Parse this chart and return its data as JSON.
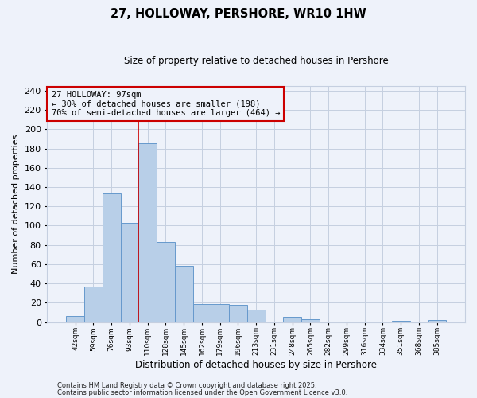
{
  "title": "27, HOLLOWAY, PERSHORE, WR10 1HW",
  "subtitle": "Size of property relative to detached houses in Pershore",
  "xlabel": "Distribution of detached houses by size in Pershore",
  "ylabel": "Number of detached properties",
  "bin_labels": [
    "42sqm",
    "59sqm",
    "76sqm",
    "93sqm",
    "110sqm",
    "128sqm",
    "145sqm",
    "162sqm",
    "179sqm",
    "196sqm",
    "213sqm",
    "231sqm",
    "248sqm",
    "265sqm",
    "282sqm",
    "299sqm",
    "316sqm",
    "334sqm",
    "351sqm",
    "368sqm",
    "385sqm"
  ],
  "bar_heights": [
    6,
    37,
    133,
    103,
    185,
    83,
    58,
    19,
    19,
    18,
    13,
    0,
    5,
    3,
    0,
    0,
    0,
    0,
    1,
    0,
    2
  ],
  "bar_color": "#b8cfe8",
  "bar_edge_color": "#6699cc",
  "vline_x": 4.0,
  "vline_color": "#cc0000",
  "annotation_title": "27 HOLLOWAY: 97sqm",
  "annotation_line1": "← 30% of detached houses are smaller (198)",
  "annotation_line2": "70% of semi-detached houses are larger (464) →",
  "annotation_box_color": "#cc0000",
  "ylim": [
    0,
    245
  ],
  "yticks": [
    0,
    20,
    40,
    60,
    80,
    100,
    120,
    140,
    160,
    180,
    200,
    220,
    240
  ],
  "footnote1": "Contains HM Land Registry data © Crown copyright and database right 2025.",
  "footnote2": "Contains public sector information licensed under the Open Government Licence v3.0.",
  "bg_color": "#eef2fa",
  "grid_color": "#c5cfe0",
  "title_fontsize": 10.5,
  "subtitle_fontsize": 8.5,
  "ylabel_fontsize": 8,
  "xlabel_fontsize": 8.5,
  "ytick_fontsize": 8,
  "xtick_fontsize": 6.5,
  "footnote_fontsize": 6,
  "annot_fontsize": 7.5
}
